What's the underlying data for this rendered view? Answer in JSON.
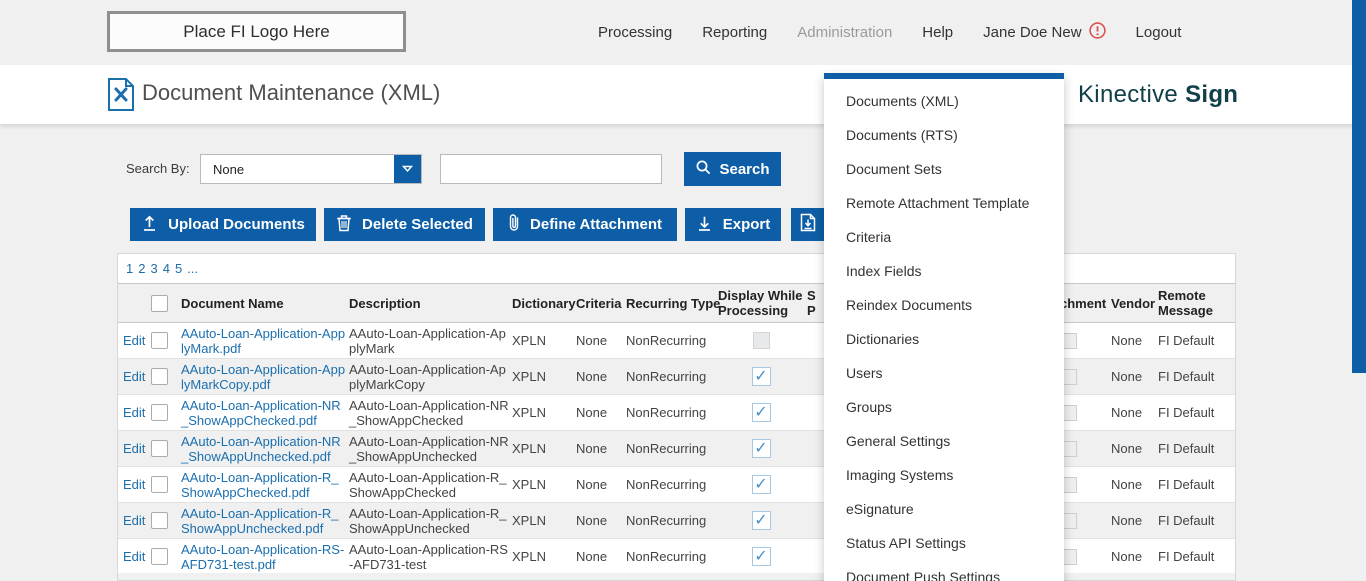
{
  "header": {
    "logo_text": "Place FI Logo Here",
    "nav": [
      {
        "label": "Processing"
      },
      {
        "label": "Reporting"
      },
      {
        "label": "Administration",
        "active": true
      },
      {
        "label": "Help"
      },
      {
        "label": "Jane Doe New",
        "alert": true
      },
      {
        "label": "Logout"
      }
    ]
  },
  "title": {
    "page_title": "Document Maintenance (XML)"
  },
  "brand": {
    "name": "Kinective",
    "product": "Sign"
  },
  "search": {
    "label": "Search By:",
    "select_value": "None",
    "input_value": "",
    "button_label": "Search"
  },
  "toolbar": {
    "upload_label": "Upload Documents",
    "delete_label": "Delete Selected",
    "attach_label": "Define Attachment",
    "export_label": "Export"
  },
  "pagination": {
    "pages": [
      "1",
      "2",
      "3",
      "4",
      "5",
      "..."
    ]
  },
  "admin_menu": {
    "items": [
      "Documents (XML)",
      "Documents (RTS)",
      "Document Sets",
      "Remote Attachment Template",
      "Criteria",
      "Index Fields",
      "Reindex Documents",
      "Dictionaries",
      "Users",
      "Groups",
      "General Settings",
      "Imaging Systems",
      "eSignature",
      "Status API Settings",
      "Document Push Settings"
    ]
  },
  "table": {
    "edit_label": "Edit",
    "headers": {
      "document_name": "Document Name",
      "description": "Description",
      "dictionary": "Dictionary",
      "criteria": "Criteria",
      "recurring_type": "Recurring Type",
      "display_while_processing": "Display While Processing",
      "covered_fragment_top": "S",
      "covered_fragment_bottom": "P",
      "attachment_partial": "chment",
      "vendor": "Vendor",
      "remote_message": "Remote Message"
    },
    "rows": [
      {
        "name": "AAuto-Loan-Application-ApplyMark.pdf",
        "description": "AAuto-Loan-Application-ApplyMark",
        "dictionary": "XPLN",
        "criteria": "None",
        "recurring_type": "NonRecurring",
        "display_while_processing": false,
        "vendor": "None",
        "remote_message": "FI Default"
      },
      {
        "name": "AAuto-Loan-Application-ApplyMarkCopy.pdf",
        "description": "AAuto-Loan-Application-ApplyMarkCopy",
        "dictionary": "XPLN",
        "criteria": "None",
        "recurring_type": "NonRecurring",
        "display_while_processing": true,
        "vendor": "None",
        "remote_message": "FI Default"
      },
      {
        "name": "AAuto-Loan-Application-NR_ShowAppChecked.pdf",
        "description": "AAuto-Loan-Application-NR_ShowAppChecked",
        "dictionary": "XPLN",
        "criteria": "None",
        "recurring_type": "NonRecurring",
        "display_while_processing": true,
        "vendor": "None",
        "remote_message": "FI Default"
      },
      {
        "name": "AAuto-Loan-Application-NR_ShowAppUnchecked.pdf",
        "description": "AAuto-Loan-Application-NR_ShowAppUnchecked",
        "dictionary": "XPLN",
        "criteria": "None",
        "recurring_type": "NonRecurring",
        "display_while_processing": true,
        "vendor": "None",
        "remote_message": "FI Default"
      },
      {
        "name": "AAuto-Loan-Application-R_ShowAppChecked.pdf",
        "description": "AAuto-Loan-Application-R_ShowAppChecked",
        "dictionary": "XPLN",
        "criteria": "None",
        "recurring_type": "NonRecurring",
        "display_while_processing": true,
        "vendor": "None",
        "remote_message": "FI Default"
      },
      {
        "name": "AAuto-Loan-Application-R_ShowAppUnchecked.pdf",
        "description": "AAuto-Loan-Application-R_ShowAppUnchecked",
        "dictionary": "XPLN",
        "criteria": "None",
        "recurring_type": "NonRecurring",
        "display_while_processing": true,
        "vendor": "None",
        "remote_message": "FI Default"
      },
      {
        "name": "AAuto-Loan-Application-RS-AFD731-test.pdf",
        "description": "AAuto-Loan-Application-RS-AFD731-test",
        "dictionary": "XPLN",
        "criteria": "None",
        "recurring_type": "NonRecurring",
        "display_while_processing": true,
        "vendor": "None",
        "remote_message": "FI Default"
      }
    ]
  },
  "colors": {
    "primary_blue": "#0d5ea6",
    "link_blue": "#1b6fae",
    "brand_teal": "#11404b",
    "alert_red": "#d9534f"
  },
  "checkmark_glyph": "✓"
}
